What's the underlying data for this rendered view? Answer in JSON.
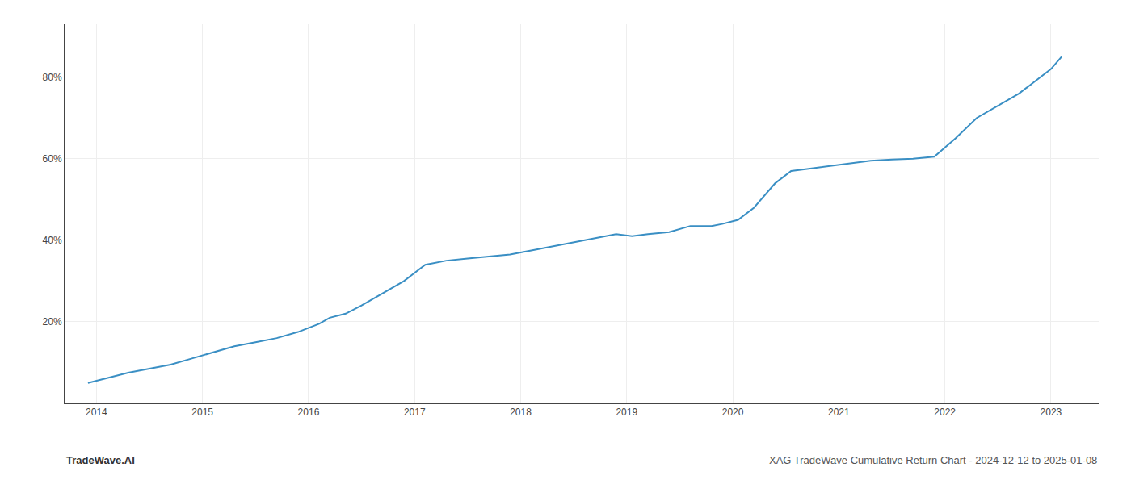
{
  "chart_data": {
    "type": "line",
    "annotations": [
      "TradeWave.AI",
      "XAG TradeWave Cumulative Return Chart - 2024-12-12 to 2025-01-08"
    ],
    "x": [
      2013.92,
      2014.0,
      2014.15,
      2014.3,
      2014.5,
      2014.7,
      2014.9,
      2015.1,
      2015.3,
      2015.5,
      2015.7,
      2015.9,
      2016.1,
      2016.2,
      2016.35,
      2016.5,
      2016.7,
      2016.9,
      2017.1,
      2017.3,
      2017.5,
      2017.7,
      2017.9,
      2018.1,
      2018.3,
      2018.5,
      2018.7,
      2018.9,
      2019.05,
      2019.2,
      2019.4,
      2019.6,
      2019.8,
      2019.9,
      2020.05,
      2020.2,
      2020.4,
      2020.55,
      2020.7,
      2020.85,
      2021.0,
      2021.15,
      2021.3,
      2021.5,
      2021.7,
      2021.9,
      2022.1,
      2022.3,
      2022.5,
      2022.7,
      2022.85,
      2023.0,
      2023.1
    ],
    "values": [
      5,
      5.5,
      6.5,
      7.5,
      8.5,
      9.5,
      11,
      12.5,
      14,
      15,
      16,
      17.5,
      19.5,
      21,
      22,
      24,
      27,
      30,
      34,
      35,
      35.5,
      36,
      36.5,
      37.5,
      38.5,
      39.5,
      40.5,
      41.5,
      41,
      41.5,
      42,
      43.5,
      43.5,
      44,
      45,
      48,
      54,
      57,
      57.5,
      58,
      58.5,
      59,
      59.5,
      59.8,
      60,
      60.5,
      65,
      70,
      73,
      76,
      79,
      82,
      85
    ],
    "color": "#3a8fc4",
    "xlim": [
      2013.7,
      2023.45
    ],
    "xticks": [
      2014,
      2015,
      2016,
      2017,
      2018,
      2019,
      2020,
      2021,
      2022,
      2023
    ],
    "ylim": [
      0,
      93
    ],
    "yticks": [
      {
        "value": 20,
        "label": "20%"
      },
      {
        "value": 40,
        "label": "40%"
      },
      {
        "value": 60,
        "label": "60%"
      },
      {
        "value": 80,
        "label": "80%"
      }
    ],
    "grid": true
  }
}
